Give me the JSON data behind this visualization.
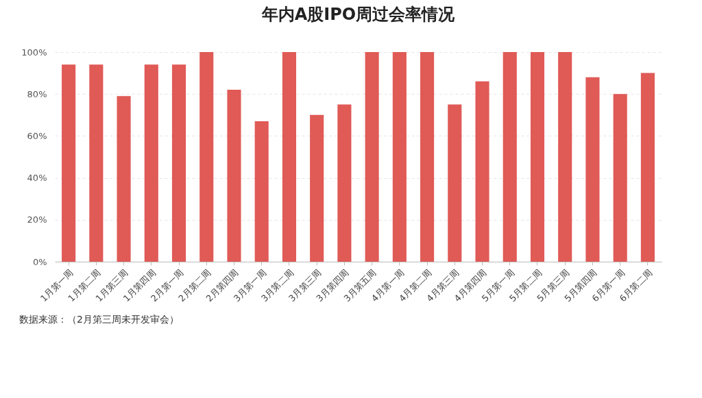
{
  "chart_data": {
    "type": "bar",
    "title": "年内A股IPO周过会率情况",
    "categories": [
      "1月第一周",
      "1月第二周",
      "1月第三周",
      "1月第四周",
      "2月第一周",
      "2月第二周",
      "2月第四周",
      "3月第一周",
      "3月第二周",
      "3月第三周",
      "3月第四周",
      "3月第五周",
      "4月第一周",
      "4月第二周",
      "4月第三周",
      "4月第四周",
      "5月第一周",
      "5月第二周",
      "5月第三周",
      "5月第四周",
      "6月第一周",
      "6月第二周"
    ],
    "values": [
      94,
      94,
      79,
      94,
      94,
      100,
      82,
      67,
      100,
      70,
      75,
      100,
      100,
      100,
      75,
      86,
      100,
      100,
      100,
      88,
      80,
      90
    ],
    "color": "#e05a56",
    "ylim": [
      0,
      100
    ],
    "yticks": [
      {
        "value": 0,
        "label": "0%"
      },
      {
        "value": 20,
        "label": "20%"
      },
      {
        "value": 40,
        "label": "40%"
      },
      {
        "value": 60,
        "label": "60%"
      },
      {
        "value": 80,
        "label": "80%"
      },
      {
        "value": 100,
        "label": "100%"
      }
    ],
    "grid": "y",
    "annotations": [
      "数据来源：（2月第三周未开发审会）"
    ]
  }
}
